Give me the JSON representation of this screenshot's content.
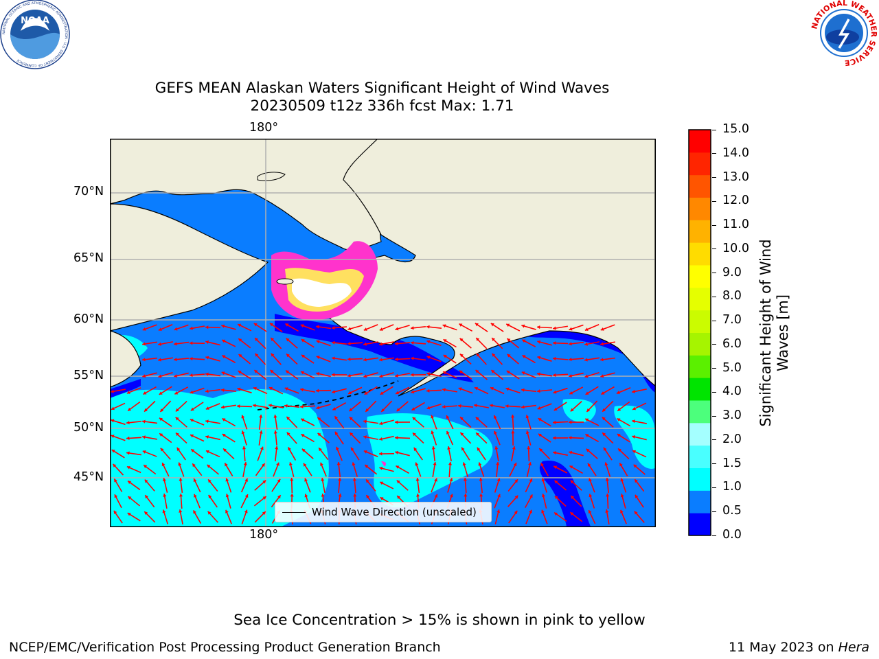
{
  "title": {
    "line1": "GEFS MEAN Alaskan Waters Significant Height of Wind Waves",
    "line2": "20230509 t12z 336h fcst   Max: 1.71"
  },
  "map": {
    "projection": "mercator",
    "lon_range": [
      158,
      211
    ],
    "lat_range": [
      41,
      74
    ],
    "lon_label_top": "180°",
    "lon_label_bottom": "180°",
    "lat_labels": [
      "70°N",
      "65°N",
      "60°N",
      "55°N",
      "50°N",
      "45°N"
    ],
    "grid": true,
    "land_color": "#efeedc",
    "ocean_field_colors": [
      "#0000ff",
      "#0a7dff",
      "#00ffff",
      "#9fffff"
    ],
    "sea_ice_colors": [
      "#ff33cc",
      "#ff9e80",
      "#ffe060",
      "#ffffff"
    ],
    "arrow_color": "#ff0000"
  },
  "legend": {
    "label": "Wind Wave Direction (unscaled)"
  },
  "colorbar": {
    "label": "Significant Height of Wind Waves [m]",
    "label_line1": "Significant Height of Wind",
    "label_line2": "Waves [m]",
    "ticks": [
      "0.0",
      "0.5",
      "1.0",
      "1.5",
      "2.0",
      "3.0",
      "4.0",
      "5.0",
      "6.0",
      "7.0",
      "8.0",
      "9.0",
      "10.0",
      "11.0",
      "12.0",
      "13.0",
      "14.0",
      "15.0"
    ],
    "colors": [
      "#0000ff",
      "#0a7dff",
      "#00ffff",
      "#49ffff",
      "#a4ffff",
      "#4cff7c",
      "#00e400",
      "#5bf000",
      "#a6f400",
      "#cbfc00",
      "#e5ff00",
      "#ffff00",
      "#ffdc00",
      "#ffb200",
      "#ff8800",
      "#ff5500",
      "#ff2500",
      "#ff0000"
    ]
  },
  "logos": {
    "noaa_text": "NOAA",
    "noaa_ring_text": "NATIONAL OCEANIC AND ATMOSPHERIC ADMINISTRATION · U.S. DEPARTMENT OF COMMERCE",
    "nws_ring_text": "NATIONAL WEATHER SERVICE"
  },
  "footer": {
    "note": "Sea Ice Concentration > 15% is shown in pink to yellow",
    "left": "NCEP/EMC/Verification Post Processing Product Generation Branch",
    "date": "11 May 2023 on",
    "machine": "Hera"
  }
}
